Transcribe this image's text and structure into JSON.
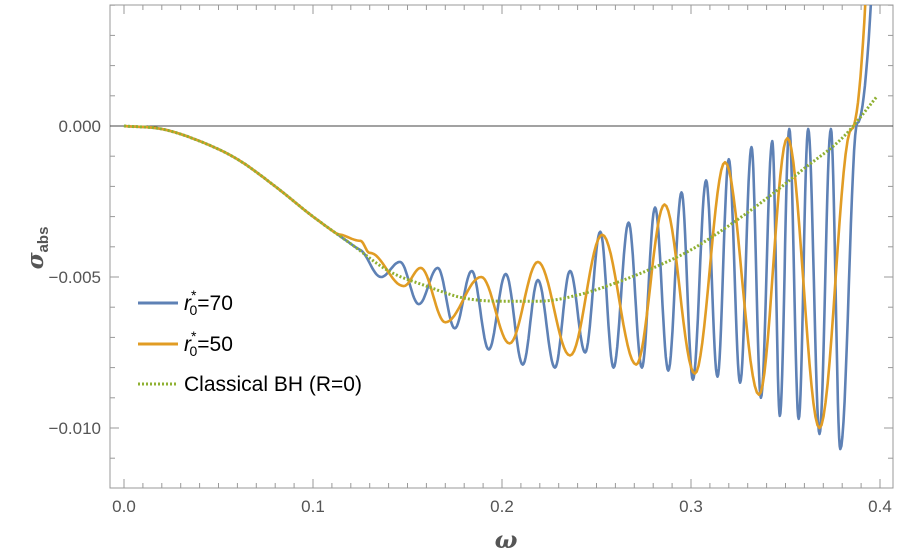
{
  "chart_data": {
    "type": "line",
    "title": "",
    "xlabel": "ω",
    "ylabel_main": "σ",
    "ylabel_sub": "abs",
    "xlim": [
      0.0,
      0.4
    ],
    "ylim": [
      -0.012,
      0.004
    ],
    "xticks": [
      0.0,
      0.1,
      0.2,
      0.3,
      0.4
    ],
    "xtick_labels": [
      "0.0",
      "0.1",
      "0.2",
      "0.3",
      "0.4"
    ],
    "yticks": [
      0.0,
      -0.005,
      -0.01
    ],
    "ytick_labels": [
      "0.000",
      "−0.005",
      "−0.010"
    ],
    "zero_line": true,
    "grid": false,
    "legend_position": "left-center",
    "series": [
      {
        "name": "r0*=70",
        "legend_main": "r",
        "legend_sup": "*",
        "legend_sub": "0",
        "legend_value": "=70",
        "color": "#5E81B5",
        "style": "solid",
        "minima": [
          0.136,
          0.156,
          0.175,
          0.193,
          0.211,
          0.228,
          0.244,
          0.259,
          0.274,
          0.288,
          0.301,
          0.314,
          0.326,
          0.337,
          0.347,
          0.357,
          0.368,
          0.379
        ],
        "minima_values": [
          -0.005,
          -0.0059,
          -0.0067,
          -0.0074,
          -0.0079,
          -0.008,
          -0.0075,
          -0.008,
          -0.008,
          -0.0081,
          -0.0084,
          -0.0083,
          -0.0085,
          -0.009,
          -0.0096,
          -0.0097,
          -0.0102,
          -0.0107
        ],
        "maxima": [
          0.146,
          0.166,
          0.184,
          0.202,
          0.219,
          0.236,
          0.252,
          0.267,
          0.281,
          0.295,
          0.308,
          0.32,
          0.332,
          0.343,
          0.352,
          0.362,
          0.374,
          0.388
        ],
        "maxima_values": [
          -0.0045,
          -0.0047,
          -0.0048,
          -0.0049,
          -0.0051,
          -0.0048,
          -0.0035,
          -0.0032,
          -0.0027,
          -0.0022,
          -0.0018,
          -0.0011,
          -0.0007,
          -0.0005,
          -0.0001,
          -0.0001,
          -0.0001,
          0.0001
        ]
      },
      {
        "name": "r0*=50",
        "legend_main": "r",
        "legend_sup": "*",
        "legend_sub": "0",
        "legend_value": "=50",
        "color": "#E19C24",
        "style": "solid",
        "minima": [
          0.13,
          0.148,
          0.17,
          0.204,
          0.236,
          0.271,
          0.302,
          0.336,
          0.368
        ],
        "minima_values": [
          -0.0042,
          -0.0053,
          -0.0065,
          -0.0072,
          -0.0076,
          -0.0079,
          -0.0082,
          -0.0089,
          -0.01
        ],
        "maxima": [
          0.125,
          0.157,
          0.189,
          0.219,
          0.253,
          0.286,
          0.318,
          0.351,
          0.385
        ],
        "maxima_values": [
          -0.0038,
          -0.0047,
          -0.005,
          -0.0045,
          -0.0036,
          -0.0026,
          -0.0012,
          -0.0004,
          -0.0001
        ]
      },
      {
        "name": "Classical BH (R=0)",
        "legend_label": "Classical BH (R=0)",
        "color": "#8FB032",
        "style": "dotted",
        "x": [
          0.0,
          0.02,
          0.04,
          0.06,
          0.08,
          0.1,
          0.12,
          0.14,
          0.16,
          0.18,
          0.2,
          0.22,
          0.24,
          0.26,
          0.28,
          0.3,
          0.32,
          0.34,
          0.36,
          0.38,
          0.4
        ],
        "y": [
          0.0,
          -0.0001,
          -0.0005,
          -0.0011,
          -0.002,
          -0.003,
          -0.0039,
          -0.0048,
          -0.0053,
          -0.0057,
          -0.0058,
          -0.0058,
          -0.0056,
          -0.0052,
          -0.0047,
          -0.0041,
          -0.0033,
          -0.0024,
          -0.0014,
          -0.0004,
          0.0011
        ]
      }
    ]
  }
}
